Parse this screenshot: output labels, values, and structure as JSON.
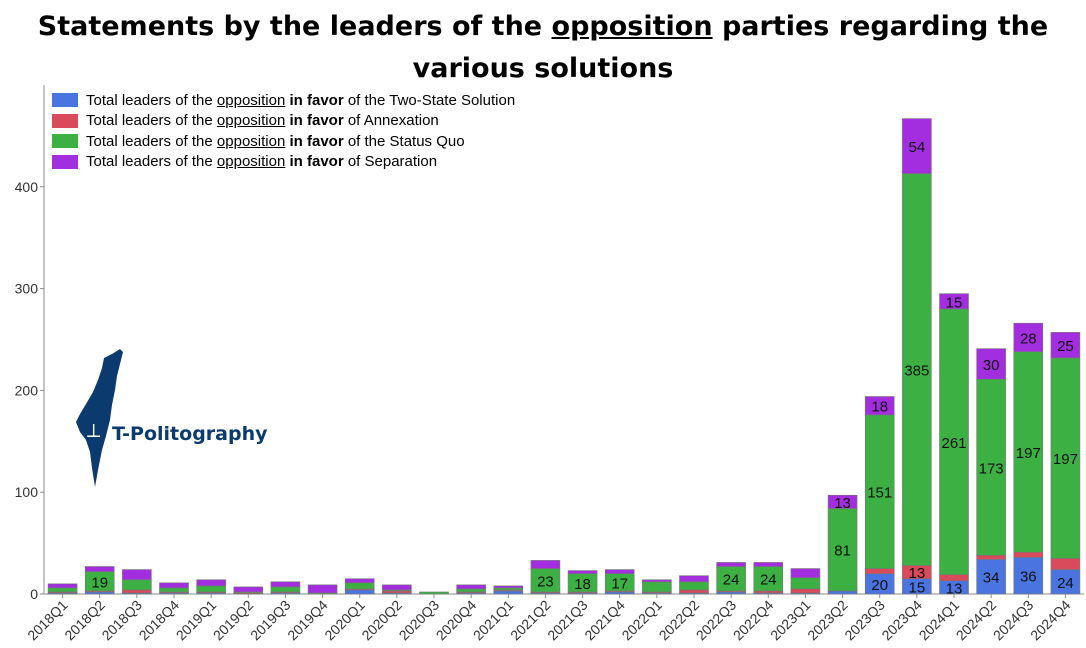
{
  "title": {
    "part1": "Statements by the leaders of the ",
    "underlined": "opposition",
    "part2": " parties regarding the various solutions"
  },
  "legend": [
    {
      "pre": "Total leaders of the ",
      "u": "opposition",
      "b": " in favor",
      "post": " of the Two-State Solution",
      "color": "#4a74e0"
    },
    {
      "pre": "Total leaders of the ",
      "u": "opposition",
      "b": " in favor",
      "post": " of Annexation",
      "color": "#d94a5a"
    },
    {
      "pre": "Total leaders of the ",
      "u": "opposition",
      "b": " in favor",
      "post": " of the Status Quo",
      "color": "#3cb043"
    },
    {
      "pre": "Total leaders of the ",
      "u": "opposition",
      "b": " in favor",
      "post": " of Separation",
      "color": "#a32ee0"
    }
  ],
  "logo": {
    "text": "T-Politography"
  },
  "chart_data": {
    "type": "bar",
    "stacked": true,
    "categories": [
      "2018Q1",
      "2018Q2",
      "2018Q3",
      "2018Q4",
      "2019Q1",
      "2019Q2",
      "2019Q3",
      "2019Q4",
      "2020Q1",
      "2020Q2",
      "2020Q3",
      "2020Q4",
      "2021Q1",
      "2021Q2",
      "2021Q3",
      "2021Q4",
      "2022Q1",
      "2022Q2",
      "2022Q3",
      "2022Q4",
      "2023Q1",
      "2023Q2",
      "2023Q3",
      "2023Q4",
      "2024Q1",
      "2024Q2",
      "2024Q3",
      "2024Q4"
    ],
    "series": [
      {
        "name": "Total leaders of the opposition in favor of the Two-State Solution",
        "color": "#4a74e0",
        "values": [
          1,
          2,
          1,
          1,
          1,
          0,
          1,
          0,
          4,
          1,
          0,
          1,
          3,
          1,
          1,
          2,
          1,
          1,
          2,
          1,
          1,
          3,
          20,
          15,
          13,
          34,
          36,
          24
        ]
      },
      {
        "name": "Total leaders of the opposition in favor of Annexation",
        "color": "#d94a5a",
        "values": [
          1,
          1,
          3,
          1,
          1,
          1,
          1,
          0,
          1,
          2,
          0,
          1,
          1,
          1,
          1,
          1,
          1,
          3,
          1,
          2,
          4,
          0,
          5,
          13,
          6,
          4,
          5,
          11
        ]
      },
      {
        "name": "Total leaders of the opposition in favor of the Status Quo",
        "color": "#3cb043",
        "values": [
          4,
          19,
          10,
          4,
          6,
          1,
          5,
          1,
          6,
          1,
          2,
          3,
          2,
          23,
          18,
          17,
          10,
          8,
          24,
          24,
          11,
          81,
          151,
          385,
          261,
          173,
          197,
          197
        ]
      },
      {
        "name": "Total leaders of the opposition in favor of Separation",
        "color": "#a32ee0",
        "values": [
          4,
          5,
          10,
          5,
          6,
          5,
          5,
          8,
          4,
          5,
          0,
          4,
          2,
          8,
          3,
          4,
          2,
          6,
          4,
          4,
          9,
          13,
          18,
          54,
          15,
          30,
          28,
          25
        ]
      }
    ],
    "data_labels": {
      "Status Quo": {
        "2018Q2": "19",
        "2021Q2": "23",
        "2021Q3": "18",
        "2021Q4": "17",
        "2022Q3": "24",
        "2022Q4": "24",
        "2023Q2": "81",
        "2023Q3": "151",
        "2023Q4": "385",
        "2024Q1": "261",
        "2024Q2": "173",
        "2024Q3": "197",
        "2024Q4": "197"
      },
      "Separation": {
        "2023Q2": "13",
        "2023Q3": "18",
        "2023Q4": "54",
        "2024Q1": "15",
        "2024Q2": "30",
        "2024Q3": "28",
        "2024Q4": "25"
      },
      "Annexation": {
        "2023Q4": "13"
      },
      "Two-State Solution": {
        "2023Q3": "20",
        "2023Q4": "15",
        "2024Q1": "13",
        "2024Q2": "34",
        "2024Q3": "36",
        "2024Q4": "24"
      }
    },
    "yticks": [
      "0",
      "100",
      "200",
      "300",
      "400"
    ],
    "ylim": [
      0,
      500
    ],
    "grid": false,
    "legend_position": "top-left"
  }
}
